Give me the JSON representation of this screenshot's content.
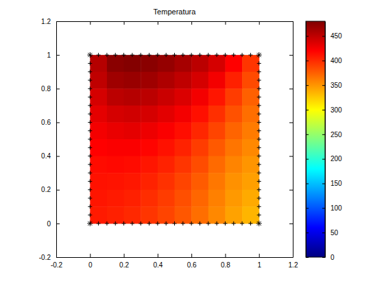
{
  "chart_data": {
    "type": "heatmap",
    "title": "Temperatura",
    "xlim": [
      -0.2,
      1.2
    ],
    "ylim": [
      -0.2,
      1.2
    ],
    "xticks": [
      -0.2,
      0,
      0.2,
      0.4,
      0.6,
      0.8,
      1,
      1.2
    ],
    "yticks": [
      -0.2,
      0,
      0.2,
      0.4,
      0.6,
      0.8,
      1,
      1.2
    ],
    "color": "jet",
    "cells": {
      "x": [
        0.05,
        0.15,
        0.25,
        0.35,
        0.45,
        0.55,
        0.65,
        0.75,
        0.85,
        0.95
      ],
      "y": [
        0.95,
        0.85,
        0.75,
        0.65,
        0.55,
        0.45,
        0.35,
        0.25,
        0.15,
        0.05
      ],
      "z": [
        [
          455,
          475,
          478,
          475,
          470,
          462,
          452,
          440,
          420,
          395
        ],
        [
          450,
          465,
          468,
          465,
          458,
          450,
          440,
          425,
          405,
          385
        ],
        [
          440,
          452,
          455,
          452,
          445,
          437,
          425,
          410,
          392,
          375
        ],
        [
          432,
          440,
          442,
          440,
          433,
          425,
          413,
          398,
          382,
          368
        ],
        [
          425,
          430,
          432,
          428,
          422,
          414,
          402,
          388,
          373,
          362
        ],
        [
          420,
          422,
          422,
          418,
          412,
          404,
          392,
          378,
          365,
          356
        ],
        [
          415,
          416,
          415,
          410,
          404,
          395,
          384,
          370,
          358,
          350
        ],
        [
          412,
          411,
          409,
          404,
          397,
          388,
          377,
          364,
          352,
          345
        ],
        [
          410,
          408,
          405,
          399,
          392,
          383,
          372,
          360,
          348,
          340
        ],
        [
          408,
          405,
          401,
          395,
          388,
          379,
          368,
          356,
          344,
          335
        ]
      ]
    },
    "colorbar": {
      "lim": [
        0,
        480
      ],
      "ticks": [
        0,
        50,
        100,
        150,
        200,
        250,
        300,
        350,
        400,
        450
      ]
    },
    "series": [
      {
        "type": "scatter",
        "marker": "plus",
        "color": "#000000",
        "x": [
          0.05,
          0.1,
          0.15,
          0.2,
          0.25,
          0.3,
          0.35,
          0.4,
          0.45,
          0.5,
          0.55,
          0.6,
          0.65,
          0.7,
          0.75,
          0.8,
          0.85,
          0.9,
          0.95,
          0.05,
          0.1,
          0.15,
          0.2,
          0.25,
          0.3,
          0.35,
          0.4,
          0.45,
          0.5,
          0.55,
          0.6,
          0.65,
          0.7,
          0.75,
          0.8,
          0.85,
          0.9,
          0.95,
          0,
          0,
          0,
          0,
          0,
          0,
          0,
          0,
          0,
          0,
          0,
          0,
          0,
          0,
          0,
          0,
          0,
          0,
          0,
          1,
          1,
          1,
          1,
          1,
          1,
          1,
          1,
          1,
          1,
          1,
          1,
          1,
          1,
          1,
          1,
          1,
          1,
          1
        ],
        "y": [
          0,
          0,
          0,
          0,
          0,
          0,
          0,
          0,
          0,
          0,
          0,
          0,
          0,
          0,
          0,
          0,
          0,
          0,
          0,
          1,
          1,
          1,
          1,
          1,
          1,
          1,
          1,
          1,
          1,
          1,
          1,
          1,
          1,
          1,
          1,
          1,
          1,
          1,
          0.05,
          0.1,
          0.15,
          0.2,
          0.25,
          0.3,
          0.35,
          0.4,
          0.45,
          0.5,
          0.55,
          0.6,
          0.65,
          0.7,
          0.75,
          0.8,
          0.85,
          0.9,
          0.95,
          0.05,
          0.1,
          0.15,
          0.2,
          0.25,
          0.3,
          0.35,
          0.4,
          0.45,
          0.5,
          0.55,
          0.6,
          0.65,
          0.7,
          0.75,
          0.8,
          0.85,
          0.9,
          0.95
        ]
      },
      {
        "type": "scatter",
        "marker": "asterisk",
        "color": "#000000",
        "x": [
          0,
          1,
          1,
          0
        ],
        "y": [
          0,
          0,
          1,
          1
        ]
      }
    ]
  }
}
